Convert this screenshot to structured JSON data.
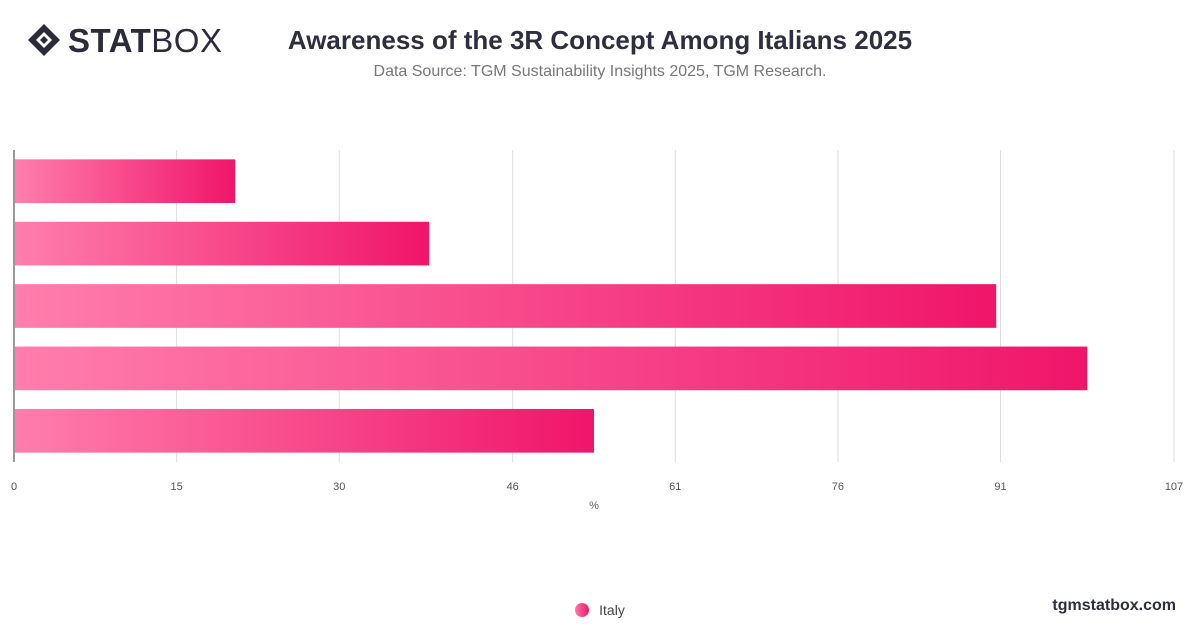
{
  "brand": {
    "logo_bold": "STAT",
    "logo_thin": "BOX",
    "site": "tgmstatbox.com"
  },
  "header": {
    "title": "Awareness of the 3R Concept Among Italians 2025",
    "subtitle": "Data Source: TGM Sustainability Insights 2025, TGM Research."
  },
  "chart_data": {
    "type": "bar",
    "orientation": "horizontal",
    "title": "Awareness of the 3R Concept Among Italians 2025",
    "xlabel": "%",
    "ylabel": "",
    "xlim": [
      0,
      107
    ],
    "ticks": [
      0,
      15,
      30,
      46,
      61,
      76,
      91,
      107
    ],
    "grid": true,
    "legend_position": "bottom",
    "categories": [
      "",
      "",
      "",
      "",
      ""
    ],
    "series": [
      {
        "name": "Italy",
        "values": [
          20.4,
          38.3,
          90.6,
          99,
          53.5
        ]
      }
    ],
    "colors": {
      "bar_start": "#ff7eac",
      "bar_end": "#f0156a",
      "grid": "#dddddd"
    }
  }
}
